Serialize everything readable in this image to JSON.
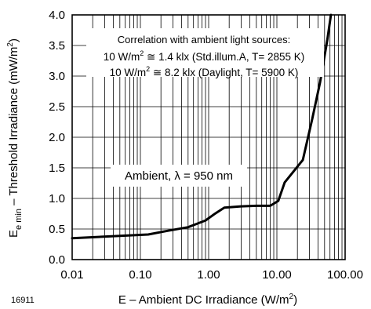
{
  "chart_data": {
    "type": "line",
    "x_scale": "log",
    "xlim": [
      0.01,
      100
    ],
    "ylim": [
      0,
      4.0
    ],
    "xlabel": "E – Ambient DC Irradiance (W/m²)",
    "ylabel": "E_e min – Threshold Irradiance (mW/m²)",
    "ylabel_parts": {
      "main": "E",
      "sub": "e min",
      "rest": " – Threshold Irradiance (mW/m",
      "sup": "2",
      "close": ")"
    },
    "xlabel_parts": {
      "main": "E – Ambient DC Irradiance (W/m",
      "sup": "2",
      "close": ")"
    },
    "x_ticks": [
      0.01,
      0.1,
      1,
      10,
      100
    ],
    "x_tick_labels": [
      "0.01",
      "0.10",
      "1.00",
      "10.00",
      "100.00"
    ],
    "y_ticks": [
      0,
      0.5,
      1.0,
      1.5,
      2.0,
      2.5,
      3.0,
      3.5,
      4.0
    ],
    "y_tick_labels": [
      "0.0",
      "0.5",
      "1.0",
      "1.5",
      "2.0",
      "2.5",
      "3.0",
      "3.5",
      "4.0"
    ],
    "grid": true,
    "series": [
      {
        "x": [
          0.01,
          0.13,
          0.25,
          0.5,
          0.9,
          1.2,
          1.7,
          3.0,
          5.0,
          8.0,
          10.5,
          13.0,
          24.0,
          33.0,
          43.0,
          55.0,
          62.0
        ],
        "y": [
          0.35,
          0.41,
          0.47,
          0.53,
          0.64,
          0.74,
          0.85,
          0.87,
          0.88,
          0.88,
          0.96,
          1.26,
          1.63,
          2.3,
          2.9,
          3.6,
          4.0
        ]
      }
    ],
    "annotations": {
      "correlation_title": "Correlation with ambient light sources:",
      "line1": {
        "a": "10 W/m",
        "sup": "2",
        "b": " ≅ 1.4 klx (Std.illum.A, T= 2855 K)"
      },
      "line2": {
        "a": "10 W/m",
        "sup": "2",
        "b": " ≅ 8.2 klx (Daylight, T= 5900 K)"
      },
      "ambient_label": "Ambient, λ = 950 nm"
    },
    "figure_id": "16911"
  }
}
